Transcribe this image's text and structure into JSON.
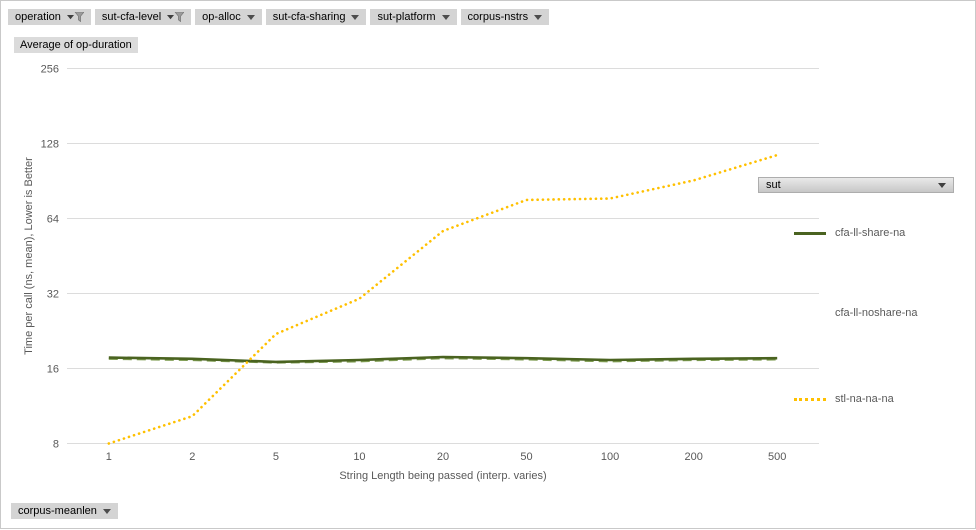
{
  "filter_bar": {
    "buttons": [
      {
        "label": "operation",
        "icon": "filter-funnel-icon",
        "filtered": true
      },
      {
        "label": "sut-cfa-level",
        "icon": "filter-funnel-icon",
        "filtered": true
      },
      {
        "label": "op-alloc",
        "icon": "chevron-down-icon",
        "filtered": false
      },
      {
        "label": "sut-cfa-sharing",
        "icon": "chevron-down-icon",
        "filtered": false
      },
      {
        "label": "sut-platform",
        "icon": "chevron-down-icon",
        "filtered": false
      },
      {
        "label": "corpus-nstrs",
        "icon": "chevron-down-icon",
        "filtered": false
      }
    ]
  },
  "value_button": {
    "label": "Average of op-duration"
  },
  "legend": {
    "field_button": {
      "label": "sut"
    },
    "items": [
      {
        "label": "cfa-ll-share-na",
        "swatch": "solid",
        "color": "#4A6320"
      },
      {
        "label": "cfa-ll-noshare-na",
        "swatch": "none",
        "color": ""
      },
      {
        "label": "stl-na-na-na",
        "swatch": "dotted",
        "color": "#FFC000"
      }
    ]
  },
  "bottom_button": {
    "label": "corpus-meanlen"
  },
  "colors": {
    "series_share": "#4A6320",
    "series_noshare": "#7E9C51",
    "series_stl": "#FFC000",
    "gridline": "#DCDCDC",
    "axis_text": "#595959",
    "button_bg": "#D4D4D4"
  },
  "chart_data": {
    "type": "line",
    "title": "Average of op-duration",
    "xlabel": "String Length  being passed (interp. varies)",
    "ylabel": "Time per call (ns, mean),  Lower  is Better",
    "x": [
      "1",
      "2",
      "5",
      "10",
      "20",
      "50",
      "100",
      "200",
      "500"
    ],
    "yticks": [
      256,
      128,
      64,
      32,
      16,
      8
    ],
    "yscale": "log2",
    "ylim": [
      8,
      256
    ],
    "grid": true,
    "legend_position": "right",
    "series": [
      {
        "name": "cfa-ll-noshare-na",
        "style": "dashed",
        "color": "#7E9C51",
        "values": [
          17.5,
          17.3,
          16.9,
          17.1,
          17.6,
          17.4,
          17.1,
          17.3,
          17.4
        ]
      },
      {
        "name": "cfa-ll-share-na",
        "style": "solid",
        "color": "#4A6320",
        "values": [
          17.7,
          17.5,
          17.0,
          17.3,
          17.8,
          17.6,
          17.3,
          17.5,
          17.6
        ]
      },
      {
        "name": "stl-na-na-na",
        "style": "dotted",
        "color": "#FFC000",
        "values": [
          8,
          10.3,
          22,
          30.5,
          57,
          76,
          77,
          91,
          115
        ]
      }
    ]
  }
}
